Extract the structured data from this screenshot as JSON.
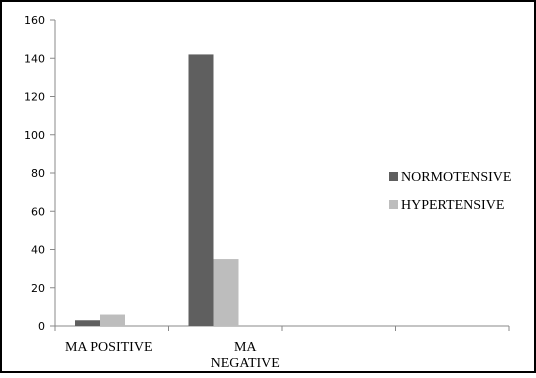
{
  "chart_data": {
    "type": "bar",
    "categories": [
      "MA POSITIVE",
      "MA NEGATIVE",
      "",
      ""
    ],
    "category_label_lines": [
      [
        "MA POSITIVE"
      ],
      [
        "MA",
        "NEGATIVE"
      ],
      [],
      []
    ],
    "series": [
      {
        "name": "NORMOTENSIVE",
        "values": [
          3,
          142,
          null,
          null
        ],
        "color": "#5f5f5f"
      },
      {
        "name": "HYPERTENSIVE",
        "values": [
          6,
          35,
          null,
          null
        ],
        "color": "#bdbdbd"
      }
    ],
    "ylim": [
      0,
      160
    ],
    "yticks": [
      0,
      20,
      40,
      60,
      80,
      100,
      120,
      140,
      160
    ],
    "title": "",
    "xlabel": "",
    "ylabel": "",
    "legend_position": "right",
    "grid": false
  }
}
